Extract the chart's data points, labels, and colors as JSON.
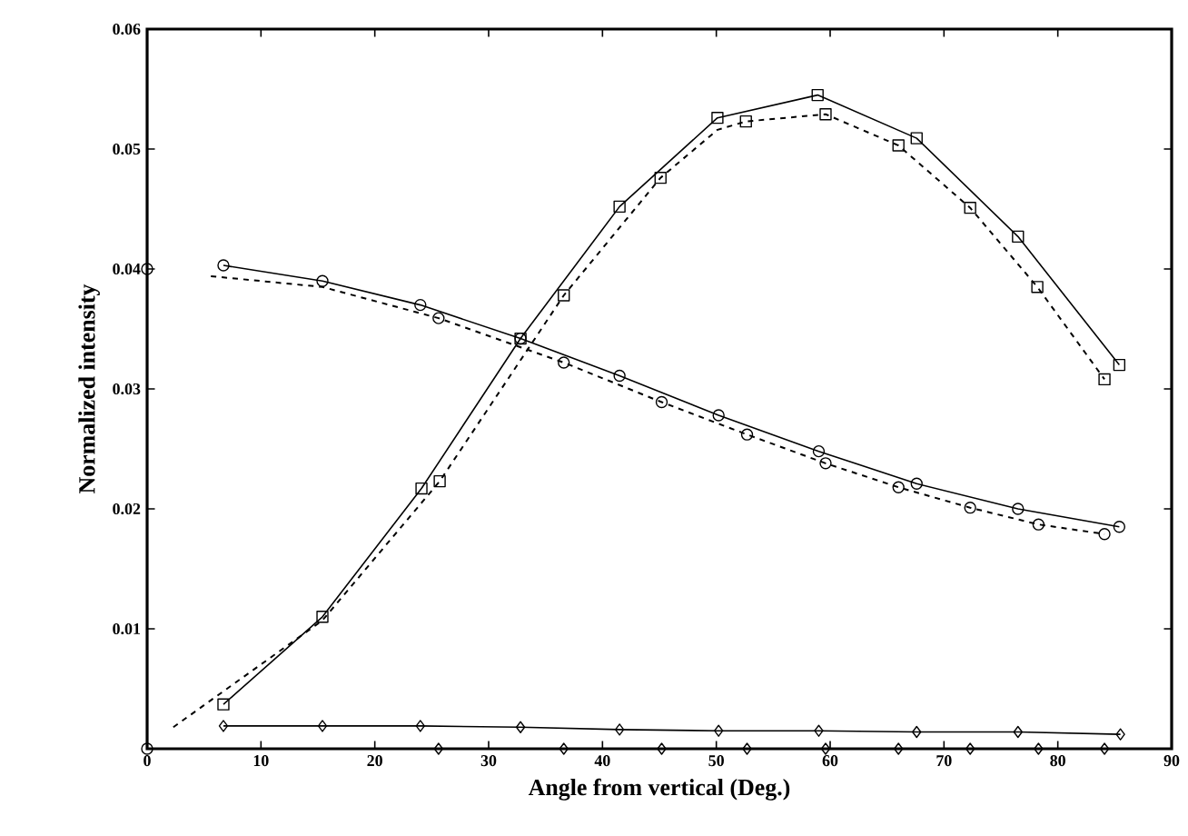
{
  "chart_data": {
    "type": "line",
    "xlabel": "Angle from vertical (Deg.)",
    "ylabel": "Normalized intensity",
    "xlim": [
      0,
      90
    ],
    "ylim": [
      0,
      0.06
    ],
    "xticks": [
      0,
      10,
      20,
      30,
      40,
      50,
      60,
      70,
      80,
      90
    ],
    "yticks": [
      {
        "value": 0,
        "label": null
      },
      {
        "value": 0.01,
        "label": "0.01"
      },
      {
        "value": 0.02,
        "label": "0.02"
      },
      {
        "value": 0.03,
        "label": "0.03"
      },
      {
        "value": 0.04,
        "label": "0.04"
      },
      {
        "value": 0.05,
        "label": "0.05"
      },
      {
        "value": 0.06,
        "label": "0.06"
      }
    ],
    "grid": false,
    "series": [
      {
        "color": "#000000",
        "marker": "square",
        "line_style": "solid",
        "x": [
          6.7,
          15.4,
          24.1,
          32.8,
          41.5,
          50.1,
          58.9,
          67.6,
          76.5,
          85.4
        ],
        "values": [
          0.0037,
          0.011,
          0.0217,
          0.0342,
          0.0452,
          0.0526,
          0.0545,
          0.0509,
          0.0427,
          0.032
        ]
      },
      {
        "color": "#000000",
        "marker": "none",
        "line_style": "dashed",
        "x": [
          2.3,
          15.4,
          25.7,
          36.6,
          45.1,
          50.1,
          52.6,
          59.6,
          66.0,
          72.3,
          78.2,
          84.1
        ],
        "values": [
          0.0018,
          0.0107,
          0.0223,
          0.0378,
          0.0476,
          0.0516,
          0.0523,
          0.0529,
          0.0503,
          0.0451,
          0.0385,
          0.0308
        ]
      },
      {
        "type": "scatter",
        "color": "#000000",
        "marker": "square",
        "x": [
          25.7,
          36.6,
          45.1,
          52.6,
          59.6,
          66.0,
          72.3,
          78.2,
          84.1
        ],
        "values": [
          0.0223,
          0.0378,
          0.0476,
          0.0523,
          0.0529,
          0.0503,
          0.0451,
          0.0385,
          0.0308
        ]
      },
      {
        "color": "#000000",
        "marker": "circle",
        "line_style": "solid",
        "x": [
          6.7,
          15.4,
          24.0,
          32.8,
          41.5,
          50.2,
          59.0,
          67.6,
          76.5,
          85.4
        ],
        "values": [
          0.0403,
          0.039,
          0.037,
          0.0342,
          0.0311,
          0.0278,
          0.0248,
          0.0221,
          0.02,
          0.0185
        ]
      },
      {
        "color": "#000000",
        "marker": "none",
        "line_style": "dashed",
        "x": [
          5.6,
          15.4,
          25.6,
          36.6,
          45.2,
          52.7,
          59.6,
          66.0,
          72.3,
          78.3,
          84.1
        ],
        "values": [
          0.0394,
          0.0385,
          0.0359,
          0.0322,
          0.0289,
          0.0262,
          0.0238,
          0.0218,
          0.0201,
          0.0187,
          0.0179
        ]
      },
      {
        "type": "scatter",
        "color": "#000000",
        "marker": "circle",
        "x": [
          0,
          0,
          25.6,
          36.6,
          45.2,
          52.7,
          59.6,
          66.0,
          72.3,
          78.3,
          84.1
        ],
        "values": [
          0.04,
          0,
          0.0359,
          0.0322,
          0.0289,
          0.0262,
          0.0238,
          0.0218,
          0.0201,
          0.0187,
          0.0179
        ]
      },
      {
        "color": "#000000",
        "marker": "diamond",
        "line_style": "solid",
        "x": [
          6.7,
          15.4,
          24.0,
          32.8,
          41.5,
          50.2,
          59.0,
          67.6,
          76.5,
          85.5
        ],
        "values": [
          0.0019,
          0.0019,
          0.0019,
          0.0018,
          0.0016,
          0.0015,
          0.0015,
          0.0014,
          0.0014,
          0.0012
        ]
      },
      {
        "type": "scatter",
        "color": "#000000",
        "marker": "diamond",
        "x": [
          25.6,
          36.6,
          45.2,
          52.7,
          59.6,
          66.0,
          72.3,
          78.3,
          84.1
        ],
        "values": [
          0,
          0,
          0,
          0,
          0,
          0,
          0,
          0,
          0
        ]
      }
    ]
  }
}
